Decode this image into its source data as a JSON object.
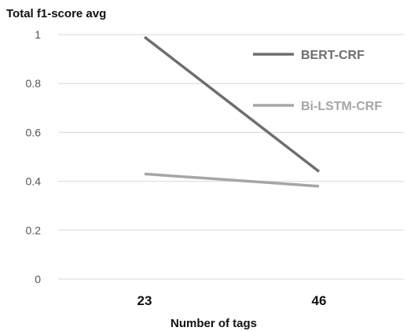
{
  "chart_data": {
    "type": "line",
    "title": "Total f1-score avg",
    "xlabel": "Number of tags",
    "ylabel": "",
    "categories": [
      "23",
      "46"
    ],
    "ylim": [
      0,
      1
    ],
    "yticks": [
      "0",
      "0.2",
      "0.4",
      "0.6",
      "0.8",
      "1"
    ],
    "grid": true,
    "legend_position": "top-right",
    "series": [
      {
        "name": "BERT-CRF",
        "values": [
          0.99,
          0.44
        ],
        "color": "#6e6e6e"
      },
      {
        "name": "Bi-LSTM-CRF",
        "values": [
          0.43,
          0.38
        ],
        "color": "#a6a6a6"
      }
    ]
  }
}
